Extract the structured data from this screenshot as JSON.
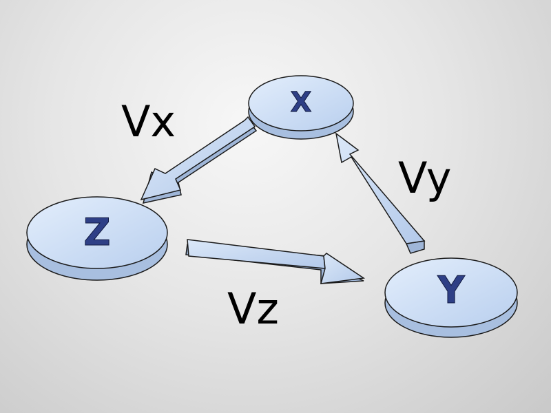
{
  "nodes": [
    {
      "id": "x",
      "label": "X"
    },
    {
      "id": "y",
      "label": "Y"
    },
    {
      "id": "z",
      "label": "Z"
    }
  ],
  "edges": [
    {
      "from": "X",
      "to": "Z",
      "label": "Vx"
    },
    {
      "from": "Z",
      "to": "Y",
      "label": "Vz"
    },
    {
      "from": "Y",
      "to": "X",
      "label": "Vy"
    }
  ],
  "colors": {
    "node_top": "#cfe0f6",
    "node_side": "#a8bfe0",
    "arrow_top": "#c9dbf3",
    "arrow_side": "#9fb6d8",
    "letter": "#2e3f86",
    "outline": "#1a1a1a"
  }
}
